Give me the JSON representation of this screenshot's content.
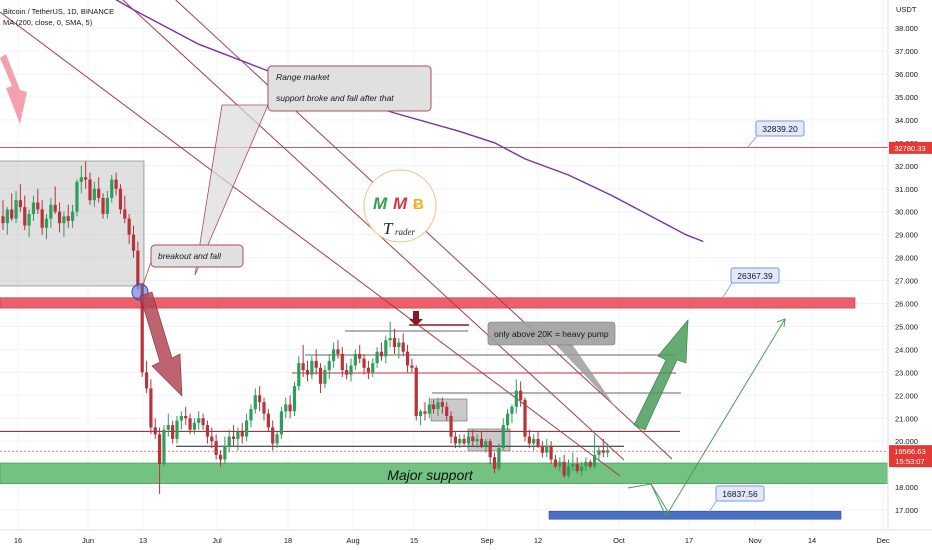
{
  "header": {
    "symbol_line": "Bitcoin / TetherUS, 1D, BINANCE",
    "indicator_line": "MA (200, close, 0, SMA, 5)"
  },
  "currency": "USDT",
  "colors": {
    "bull": "#2e9e5b",
    "bear": "#b8323a",
    "resistance": "#e0505a",
    "support": "#6cbf7a",
    "ma": "#7b2fa8",
    "trend": "#a33d4c",
    "projection": "#4a9c5a",
    "price_tag": "#e53935",
    "low_zone": "#4a6fc4"
  },
  "chart_data": {
    "type": "candlestick",
    "ylim": [
      16400,
      39600
    ],
    "y_ticks": [
      17000,
      18000,
      19000,
      20000,
      21000,
      22000,
      23000,
      24000,
      25000,
      26000,
      27000,
      28000,
      29000,
      30000,
      31000,
      32000,
      33000,
      34000,
      35000,
      36000,
      37000,
      38000
    ],
    "x_tick_labels": [
      "16",
      "Jun",
      "13",
      "Jul",
      "18",
      "Aug",
      "15",
      "Sep",
      "12",
      "Oct",
      "17",
      "Nov",
      "14",
      "Dec"
    ],
    "price_labels": {
      "level_1": "32780.33",
      "current": "19566.63",
      "countdown": "15:53:07"
    },
    "level_boxes": [
      "32839.20",
      "26367.39",
      "16837.56"
    ],
    "levels": {
      "resistance_line": 32800,
      "breakdown_zone": [
        25800,
        26250
      ],
      "major_support_zone": [
        18150,
        19050
      ],
      "low_zone": [
        16600,
        16950
      ],
      "lines": [
        20430,
        19780
      ]
    },
    "moving_average": {
      "name": "MA 200",
      "points": [
        [
          19,
          40000
        ],
        [
          30,
          38800
        ],
        [
          45,
          37300
        ],
        [
          60,
          36200
        ],
        [
          75,
          35200
        ],
        [
          90,
          34300
        ],
        [
          105,
          33500
        ],
        [
          113,
          33000
        ],
        [
          120,
          32300
        ],
        [
          130,
          31600
        ],
        [
          140,
          30700
        ],
        [
          150,
          29700
        ],
        [
          157,
          29000
        ],
        [
          161,
          28700
        ]
      ]
    },
    "candles": [
      {
        "i": 0,
        "o": 29800,
        "h": 30500,
        "l": 29200,
        "c": 29500
      },
      {
        "i": 1,
        "o": 29500,
        "h": 30200,
        "l": 29000,
        "c": 30100
      },
      {
        "i": 2,
        "o": 30100,
        "h": 30800,
        "l": 29600,
        "c": 29700
      },
      {
        "i": 3,
        "o": 29700,
        "h": 30900,
        "l": 29500,
        "c": 30500
      },
      {
        "i": 4,
        "o": 30500,
        "h": 31200,
        "l": 30000,
        "c": 30200
      },
      {
        "i": 5,
        "o": 30200,
        "h": 30700,
        "l": 29200,
        "c": 29400
      },
      {
        "i": 6,
        "o": 29400,
        "h": 30100,
        "l": 28900,
        "c": 29900
      },
      {
        "i": 7,
        "o": 29900,
        "h": 30700,
        "l": 29600,
        "c": 30400
      },
      {
        "i": 8,
        "o": 30400,
        "h": 31000,
        "l": 29900,
        "c": 30100
      },
      {
        "i": 9,
        "o": 30100,
        "h": 30500,
        "l": 29000,
        "c": 29300
      },
      {
        "i": 10,
        "o": 29300,
        "h": 29900,
        "l": 28800,
        "c": 29700
      },
      {
        "i": 11,
        "o": 29700,
        "h": 30600,
        "l": 29300,
        "c": 30300
      },
      {
        "i": 12,
        "o": 30300,
        "h": 31100,
        "l": 29900,
        "c": 30000
      },
      {
        "i": 13,
        "o": 30000,
        "h": 30400,
        "l": 29100,
        "c": 29500
      },
      {
        "i": 14,
        "o": 29500,
        "h": 30000,
        "l": 28900,
        "c": 29800
      },
      {
        "i": 15,
        "o": 29800,
        "h": 30300,
        "l": 29300,
        "c": 29600
      },
      {
        "i": 16,
        "o": 29600,
        "h": 30300,
        "l": 29300,
        "c": 30000
      },
      {
        "i": 17,
        "o": 30000,
        "h": 31400,
        "l": 29800,
        "c": 31300
      },
      {
        "i": 18,
        "o": 31300,
        "h": 32000,
        "l": 30800,
        "c": 31500
      },
      {
        "i": 19,
        "o": 31500,
        "h": 32200,
        "l": 31000,
        "c": 31400
      },
      {
        "i": 20,
        "o": 31400,
        "h": 31700,
        "l": 30300,
        "c": 30500
      },
      {
        "i": 21,
        "o": 30500,
        "h": 31300,
        "l": 30200,
        "c": 31000
      },
      {
        "i": 22,
        "o": 31000,
        "h": 31500,
        "l": 30400,
        "c": 30600
      },
      {
        "i": 23,
        "o": 30600,
        "h": 30800,
        "l": 29700,
        "c": 29900
      },
      {
        "i": 24,
        "o": 29900,
        "h": 30900,
        "l": 29700,
        "c": 30600
      },
      {
        "i": 25,
        "o": 30600,
        "h": 31600,
        "l": 30400,
        "c": 31400
      },
      {
        "i": 26,
        "o": 31400,
        "h": 31700,
        "l": 30700,
        "c": 31000
      },
      {
        "i": 27,
        "o": 31000,
        "h": 31200,
        "l": 29900,
        "c": 30100
      },
      {
        "i": 28,
        "o": 30100,
        "h": 30700,
        "l": 29500,
        "c": 29700
      },
      {
        "i": 29,
        "o": 29700,
        "h": 29900,
        "l": 28600,
        "c": 29000
      },
      {
        "i": 30,
        "o": 29000,
        "h": 29400,
        "l": 28000,
        "c": 28300
      },
      {
        "i": 31,
        "o": 28300,
        "h": 28700,
        "l": 26600,
        "c": 26800
      },
      {
        "i": 32,
        "o": 26800,
        "h": 26900,
        "l": 22800,
        "c": 23000
      },
      {
        "i": 33,
        "o": 23000,
        "h": 23500,
        "l": 22100,
        "c": 22300
      },
      {
        "i": 34,
        "o": 22300,
        "h": 22700,
        "l": 20300,
        "c": 20600
      },
      {
        "i": 35,
        "o": 20600,
        "h": 21000,
        "l": 20100,
        "c": 20300
      },
      {
        "i": 36,
        "o": 20300,
        "h": 20600,
        "l": 17700,
        "c": 19000
      },
      {
        "i": 37,
        "o": 19000,
        "h": 20700,
        "l": 18900,
        "c": 20500
      },
      {
        "i": 38,
        "o": 20500,
        "h": 21200,
        "l": 20200,
        "c": 20700
      },
      {
        "i": 39,
        "o": 20700,
        "h": 20900,
        "l": 19900,
        "c": 20100
      },
      {
        "i": 40,
        "o": 20100,
        "h": 21100,
        "l": 19900,
        "c": 20900
      },
      {
        "i": 41,
        "o": 20900,
        "h": 21300,
        "l": 20500,
        "c": 21100
      },
      {
        "i": 42,
        "o": 21100,
        "h": 21500,
        "l": 20700,
        "c": 21000
      },
      {
        "i": 43,
        "o": 21000,
        "h": 21200,
        "l": 20300,
        "c": 20500
      },
      {
        "i": 44,
        "o": 20500,
        "h": 21000,
        "l": 20300,
        "c": 20800
      },
      {
        "i": 45,
        "o": 20800,
        "h": 21300,
        "l": 20500,
        "c": 21000
      },
      {
        "i": 46,
        "o": 21000,
        "h": 21200,
        "l": 20500,
        "c": 20700
      },
      {
        "i": 47,
        "o": 20700,
        "h": 20900,
        "l": 19900,
        "c": 20200
      },
      {
        "i": 48,
        "o": 20200,
        "h": 20600,
        "l": 19700,
        "c": 20000
      },
      {
        "i": 49,
        "o": 20000,
        "h": 20300,
        "l": 19200,
        "c": 19400
      },
      {
        "i": 50,
        "o": 19400,
        "h": 19600,
        "l": 18900,
        "c": 19200
      },
      {
        "i": 51,
        "o": 19200,
        "h": 20200,
        "l": 19000,
        "c": 19800
      },
      {
        "i": 52,
        "o": 19800,
        "h": 20500,
        "l": 19500,
        "c": 20200
      },
      {
        "i": 53,
        "o": 20200,
        "h": 20700,
        "l": 19800,
        "c": 20100
      },
      {
        "i": 54,
        "o": 20100,
        "h": 20600,
        "l": 19600,
        "c": 20400
      },
      {
        "i": 55,
        "o": 20400,
        "h": 20800,
        "l": 19900,
        "c": 20200
      },
      {
        "i": 56,
        "o": 20200,
        "h": 21200,
        "l": 20000,
        "c": 20900
      },
      {
        "i": 57,
        "o": 20900,
        "h": 21600,
        "l": 20600,
        "c": 21400
      },
      {
        "i": 58,
        "o": 21400,
        "h": 22300,
        "l": 21200,
        "c": 22000
      },
      {
        "i": 59,
        "o": 22000,
        "h": 22400,
        "l": 21300,
        "c": 21700
      },
      {
        "i": 60,
        "o": 21700,
        "h": 21900,
        "l": 20900,
        "c": 21200
      },
      {
        "i": 61,
        "o": 21200,
        "h": 21400,
        "l": 20400,
        "c": 20600
      },
      {
        "i": 62,
        "o": 20600,
        "h": 20900,
        "l": 19600,
        "c": 19900
      },
      {
        "i": 63,
        "o": 19900,
        "h": 20400,
        "l": 19700,
        "c": 20300
      },
      {
        "i": 64,
        "o": 20300,
        "h": 21500,
        "l": 20100,
        "c": 21300
      },
      {
        "i": 65,
        "o": 21300,
        "h": 21900,
        "l": 21000,
        "c": 21600
      },
      {
        "i": 66,
        "o": 21600,
        "h": 22000,
        "l": 21000,
        "c": 21300
      },
      {
        "i": 67,
        "o": 21300,
        "h": 22600,
        "l": 21100,
        "c": 22400
      },
      {
        "i": 68,
        "o": 22400,
        "h": 23700,
        "l": 22200,
        "c": 23400
      },
      {
        "i": 69,
        "o": 23400,
        "h": 24200,
        "l": 22800,
        "c": 23100
      },
      {
        "i": 70,
        "o": 23100,
        "h": 23500,
        "l": 22600,
        "c": 22900
      },
      {
        "i": 71,
        "o": 22900,
        "h": 23700,
        "l": 22700,
        "c": 23500
      },
      {
        "i": 72,
        "o": 23500,
        "h": 24000,
        "l": 22900,
        "c": 23200
      },
      {
        "i": 73,
        "o": 23200,
        "h": 23400,
        "l": 22100,
        "c": 22500
      },
      {
        "i": 74,
        "o": 22500,
        "h": 23300,
        "l": 22300,
        "c": 23100
      },
      {
        "i": 75,
        "o": 23100,
        "h": 23800,
        "l": 22700,
        "c": 23500
      },
      {
        "i": 76,
        "o": 23500,
        "h": 24300,
        "l": 23200,
        "c": 24000
      },
      {
        "i": 77,
        "o": 24000,
        "h": 24400,
        "l": 23600,
        "c": 23800
      },
      {
        "i": 78,
        "o": 23800,
        "h": 24100,
        "l": 22800,
        "c": 23100
      },
      {
        "i": 79,
        "o": 23100,
        "h": 23400,
        "l": 22700,
        "c": 22900
      },
      {
        "i": 80,
        "o": 22900,
        "h": 23600,
        "l": 22600,
        "c": 23300
      },
      {
        "i": 81,
        "o": 23300,
        "h": 24000,
        "l": 23100,
        "c": 23800
      },
      {
        "i": 82,
        "o": 23800,
        "h": 24200,
        "l": 23400,
        "c": 23600
      },
      {
        "i": 83,
        "o": 23600,
        "h": 23800,
        "l": 22900,
        "c": 23200
      },
      {
        "i": 84,
        "o": 23200,
        "h": 23500,
        "l": 22700,
        "c": 23000
      },
      {
        "i": 85,
        "o": 23000,
        "h": 23600,
        "l": 22800,
        "c": 23400
      },
      {
        "i": 86,
        "o": 23400,
        "h": 24100,
        "l": 23200,
        "c": 23900
      },
      {
        "i": 87,
        "o": 23900,
        "h": 24300,
        "l": 23500,
        "c": 23700
      },
      {
        "i": 88,
        "o": 23700,
        "h": 24600,
        "l": 23400,
        "c": 24400
      },
      {
        "i": 89,
        "o": 24400,
        "h": 25200,
        "l": 24100,
        "c": 24500
      },
      {
        "i": 90,
        "o": 24500,
        "h": 24900,
        "l": 23800,
        "c": 24100
      },
      {
        "i": 91,
        "o": 24100,
        "h": 24500,
        "l": 23600,
        "c": 24300
      },
      {
        "i": 92,
        "o": 24300,
        "h": 24700,
        "l": 23700,
        "c": 23900
      },
      {
        "i": 93,
        "o": 23900,
        "h": 24200,
        "l": 23000,
        "c": 23300
      },
      {
        "i": 94,
        "o": 23300,
        "h": 23600,
        "l": 23000,
        "c": 23200
      },
      {
        "i": 95,
        "o": 23200,
        "h": 23300,
        "l": 20900,
        "c": 21100
      },
      {
        "i": 96,
        "o": 21100,
        "h": 21400,
        "l": 20700,
        "c": 21300
      },
      {
        "i": 97,
        "o": 21300,
        "h": 21700,
        "l": 20900,
        "c": 21200
      },
      {
        "i": 98,
        "o": 21200,
        "h": 21900,
        "l": 21000,
        "c": 21600
      },
      {
        "i": 99,
        "o": 21600,
        "h": 21800,
        "l": 21200,
        "c": 21400
      },
      {
        "i": 100,
        "o": 21400,
        "h": 21900,
        "l": 21100,
        "c": 21700
      },
      {
        "i": 101,
        "o": 21700,
        "h": 21900,
        "l": 21200,
        "c": 21500
      },
      {
        "i": 102,
        "o": 21500,
        "h": 21700,
        "l": 20900,
        "c": 21100
      },
      {
        "i": 103,
        "o": 21100,
        "h": 21300,
        "l": 19900,
        "c": 20200
      },
      {
        "i": 104,
        "o": 20200,
        "h": 20400,
        "l": 19700,
        "c": 19900
      },
      {
        "i": 105,
        "o": 19900,
        "h": 20300,
        "l": 19700,
        "c": 20100
      },
      {
        "i": 106,
        "o": 20100,
        "h": 20300,
        "l": 19800,
        "c": 19900
      },
      {
        "i": 107,
        "o": 19900,
        "h": 20400,
        "l": 19700,
        "c": 20200
      },
      {
        "i": 108,
        "o": 20200,
        "h": 20500,
        "l": 19800,
        "c": 20000
      },
      {
        "i": 109,
        "o": 20000,
        "h": 20300,
        "l": 19700,
        "c": 20100
      },
      {
        "i": 110,
        "o": 20100,
        "h": 20400,
        "l": 19700,
        "c": 19800
      },
      {
        "i": 111,
        "o": 19800,
        "h": 20100,
        "l": 19500,
        "c": 20000
      },
      {
        "i": 112,
        "o": 20000,
        "h": 20100,
        "l": 19000,
        "c": 19300
      },
      {
        "i": 113,
        "o": 19300,
        "h": 19500,
        "l": 18600,
        "c": 18800
      },
      {
        "i": 114,
        "o": 18800,
        "h": 19900,
        "l": 18700,
        "c": 19700
      },
      {
        "i": 115,
        "o": 19700,
        "h": 21000,
        "l": 19600,
        "c": 20700
      },
      {
        "i": 116,
        "o": 20700,
        "h": 21400,
        "l": 20400,
        "c": 21200
      },
      {
        "i": 117,
        "o": 21200,
        "h": 21600,
        "l": 20800,
        "c": 21500
      },
      {
        "i": 118,
        "o": 21500,
        "h": 22700,
        "l": 21200,
        "c": 22200
      },
      {
        "i": 119,
        "o": 22200,
        "h": 22600,
        "l": 21500,
        "c": 21800
      },
      {
        "i": 120,
        "o": 21800,
        "h": 21900,
        "l": 20000,
        "c": 20200
      },
      {
        "i": 121,
        "o": 20200,
        "h": 20500,
        "l": 19700,
        "c": 19900
      },
      {
        "i": 122,
        "o": 19900,
        "h": 20300,
        "l": 19600,
        "c": 20100
      },
      {
        "i": 123,
        "o": 20100,
        "h": 20400,
        "l": 19700,
        "c": 19800
      },
      {
        "i": 124,
        "o": 19800,
        "h": 20000,
        "l": 19300,
        "c": 19500
      },
      {
        "i": 125,
        "o": 19500,
        "h": 20100,
        "l": 19300,
        "c": 19800
      },
      {
        "i": 126,
        "o": 19800,
        "h": 20000,
        "l": 19000,
        "c": 19200
      },
      {
        "i": 127,
        "o": 19200,
        "h": 19400,
        "l": 18800,
        "c": 18900
      },
      {
        "i": 128,
        "o": 18900,
        "h": 19300,
        "l": 18700,
        "c": 19100
      },
      {
        "i": 129,
        "o": 19100,
        "h": 19400,
        "l": 18400,
        "c": 18500
      },
      {
        "i": 130,
        "o": 18500,
        "h": 19200,
        "l": 18400,
        "c": 18900
      },
      {
        "i": 131,
        "o": 18900,
        "h": 19500,
        "l": 18700,
        "c": 19000
      },
      {
        "i": 132,
        "o": 19000,
        "h": 19300,
        "l": 18600,
        "c": 18700
      },
      {
        "i": 133,
        "o": 18700,
        "h": 19100,
        "l": 18500,
        "c": 18900
      },
      {
        "i": 134,
        "o": 18900,
        "h": 19300,
        "l": 18700,
        "c": 19100
      },
      {
        "i": 135,
        "o": 19100,
        "h": 19200,
        "l": 18800,
        "c": 18900
      },
      {
        "i": 136,
        "o": 18900,
        "h": 20300,
        "l": 18800,
        "c": 19400
      },
      {
        "i": 137,
        "o": 19400,
        "h": 19800,
        "l": 19100,
        "c": 19600
      },
      {
        "i": 138,
        "o": 19600,
        "h": 20100,
        "l": 19300,
        "c": 19500
      },
      {
        "i": 139,
        "o": 19500,
        "h": 19900,
        "l": 19300,
        "c": 19600
      }
    ]
  },
  "annotations": {
    "range_title": "Range market",
    "range_body": "support broke and fall after that",
    "breakout": "breakout and fall",
    "pump": "only above 20K = heavy pump",
    "major_support": "Major support",
    "logo_letters": [
      "M",
      "M",
      "Ƀ"
    ],
    "logo_word": "T",
    "logo_word_small": "rader"
  }
}
